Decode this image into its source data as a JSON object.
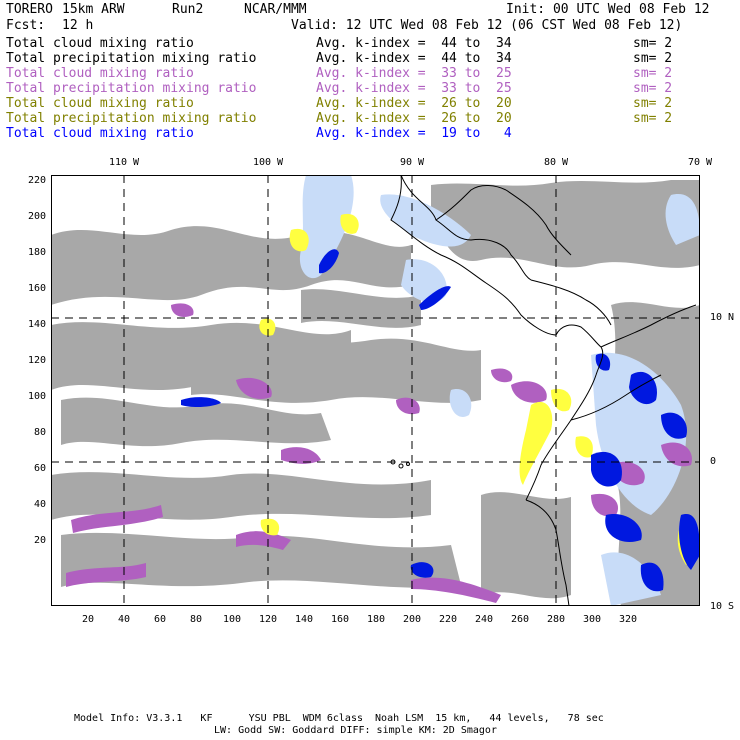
{
  "header": {
    "model": "TORERO",
    "resolution": "15km ARW",
    "run": "Run2",
    "org": "NCAR/MMM",
    "init": "Init: 00 UTC Wed 08 Feb 12",
    "fcst_label": "Fcst:",
    "fcst_value": "12 h",
    "valid": "Valid: 12 UTC Wed 08 Feb 12 (06 CST Wed 08 Feb 12)"
  },
  "legend": [
    {
      "field": "Total cloud mixing ratio",
      "range": "Avg. k-index =  44 to  34",
      "sm": "sm= 2",
      "color": "#000000"
    },
    {
      "field": "Total precipitation mixing ratio",
      "range": "Avg. k-index =  44 to  34",
      "sm": "sm= 2",
      "color": "#000000"
    },
    {
      "field": "Total cloud mixing ratio",
      "range": "Avg. k-index =  33 to  25",
      "sm": "sm= 2",
      "color": "#b060c0"
    },
    {
      "field": "Total precipitation mixing ratio",
      "range": "Avg. k-index =  33 to  25",
      "sm": "sm= 2",
      "color": "#b060c0"
    },
    {
      "field": "Total cloud mixing ratio",
      "range": "Avg. k-index =  26 to  20",
      "sm": "sm= 2",
      "color": "#808000"
    },
    {
      "field": "Total precipitation mixing ratio",
      "range": "Avg. k-index =  26 to  20",
      "sm": "sm= 2",
      "color": "#808000"
    },
    {
      "field": "Total cloud mixing ratio",
      "range": "Avg. k-index =  19 to   4",
      "sm": "",
      "color": "#0000ff"
    }
  ],
  "map": {
    "lon_labels": [
      "110 W",
      "100 W",
      "90 W",
      "80 W",
      "70 W"
    ],
    "lat_labels": [
      "10 N",
      "0",
      "10 S"
    ],
    "x_ticks": [
      "20",
      "40",
      "60",
      "80",
      "100",
      "120",
      "140",
      "160",
      "180",
      "200",
      "220",
      "240",
      "260",
      "280",
      "300",
      "320"
    ],
    "y_ticks": [
      "220",
      "200",
      "180",
      "160",
      "140",
      "120",
      "100",
      "80",
      "60",
      "40",
      "20"
    ],
    "colors": {
      "cloud_gray": "#a8a8a8",
      "purple": "#b060c0",
      "yellow": "#ffff40",
      "light_blue": "#c8dcf8",
      "blue": "#0018e0",
      "coastline": "#000000"
    }
  },
  "footer": {
    "line1": "Model Info: V3.3.1   KF      YSU PBL  WDM 6class  Noah LSM  15 km,   44 levels,   78 sec",
    "line2": "LW: Godd SW: Goddard DIFF: simple KM: 2D Smagor"
  }
}
